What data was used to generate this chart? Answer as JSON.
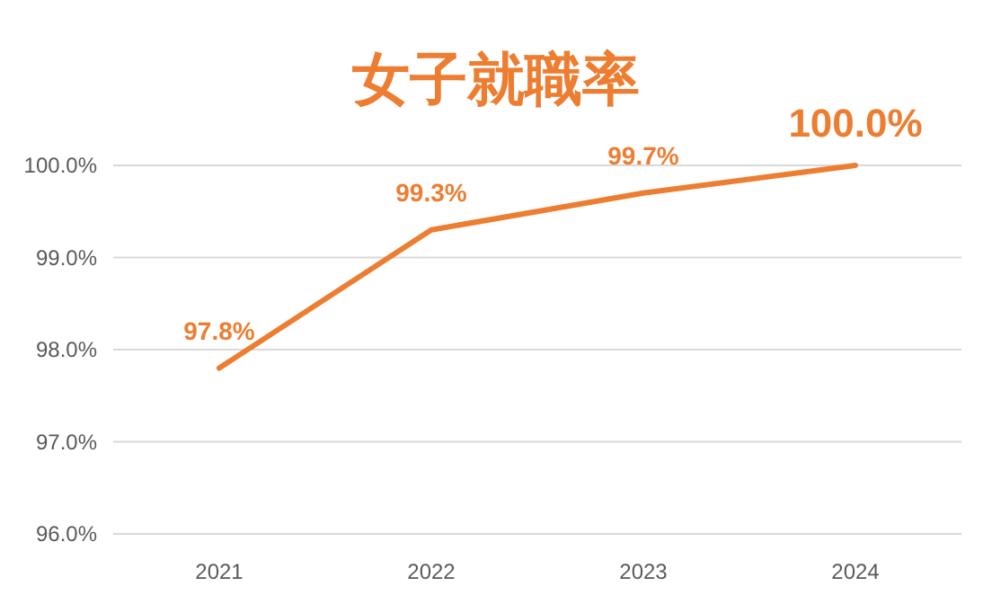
{
  "chart_data": {
    "type": "line",
    "title": "女子就職率",
    "categories": [
      "2021",
      "2022",
      "2023",
      "2024"
    ],
    "series": [
      {
        "color": "#ed7d31",
        "values": [
          97.8,
          99.3,
          99.7,
          100.0
        ],
        "value_labels": [
          "97.8%",
          "99.3%",
          "99.7%",
          "100.0%"
        ]
      }
    ],
    "ylim": [
      96,
      100
    ],
    "yticks": [
      {
        "value": 96,
        "label": "96.0%"
      },
      {
        "value": 97,
        "label": "97.0%"
      },
      {
        "value": 98,
        "label": "98.0%"
      },
      {
        "value": 99,
        "label": "99.0%"
      },
      {
        "value": 100,
        "label": "100.0%"
      }
    ],
    "grid": "y"
  }
}
